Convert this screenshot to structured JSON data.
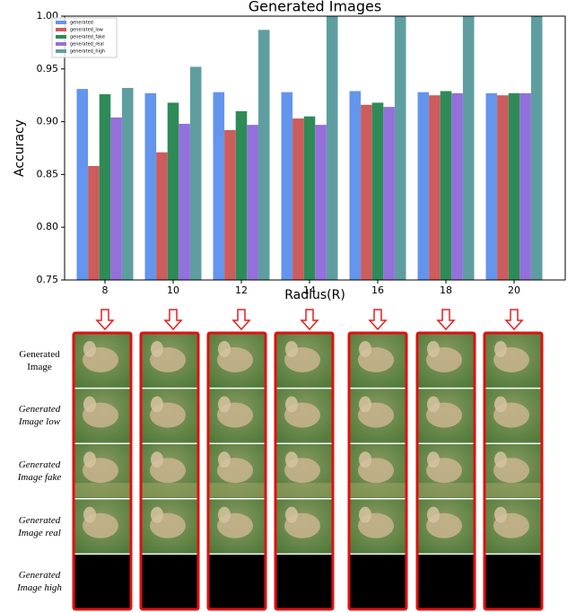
{
  "chart_data": {
    "type": "bar",
    "title": "Generated Images",
    "xlabel": "Radius(R)",
    "ylabel": "Accuracy",
    "categories": [
      "8",
      "10",
      "12",
      "14",
      "16",
      "18",
      "20"
    ],
    "series": [
      {
        "name": "generated",
        "color": "#6495ed",
        "values": [
          0.931,
          0.927,
          0.928,
          0.928,
          0.929,
          0.928,
          0.927
        ]
      },
      {
        "name": "generated_low",
        "color": "#cd5c5c",
        "values": [
          0.858,
          0.871,
          0.892,
          0.903,
          0.916,
          0.925,
          0.925
        ]
      },
      {
        "name": "generated_fake",
        "color": "#2e8b57",
        "values": [
          0.926,
          0.918,
          0.91,
          0.905,
          0.918,
          0.929,
          0.927
        ]
      },
      {
        "name": "generated_real",
        "color": "#9370db",
        "values": [
          0.904,
          0.898,
          0.897,
          0.897,
          0.914,
          0.927,
          0.927
        ]
      },
      {
        "name": "generated_high",
        "color": "#5f9ea0",
        "values": [
          0.932,
          0.952,
          0.987,
          1.0,
          1.0,
          1.0,
          1.0
        ]
      }
    ],
    "ylim": [
      0.75,
      1.0
    ],
    "yticks": [
      0.75,
      {
        "value": 0.8,
        "label": "0.80"
      },
      0.85,
      {
        "value": 0.9,
        "label": "0.90"
      },
      0.95,
      {
        "value": 1.0,
        "label": "1.00"
      }
    ],
    "legend": "upper left"
  },
  "panel": {
    "row_labels": [
      "Generated Image",
      "Generated Image low",
      "Generated Image fake",
      "Generated Image real",
      "Generated Image high"
    ]
  }
}
